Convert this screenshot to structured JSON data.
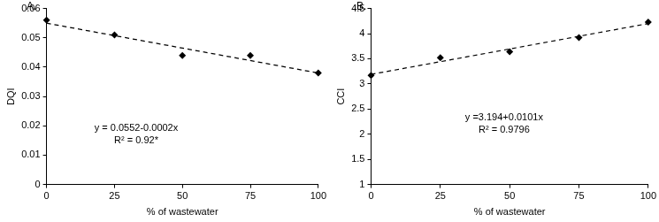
{
  "chart_data": [
    {
      "type": "scatter",
      "title": "A.",
      "x_label": "% of wastewater",
      "y_label": "DQI",
      "xlim": [
        0,
        100
      ],
      "xticks": [
        0,
        25,
        50,
        75,
        100
      ],
      "ylim": [
        0,
        0.06
      ],
      "yticks": [
        0,
        0.01,
        0.02,
        0.03,
        0.04,
        0.05,
        0.06
      ],
      "grid": false,
      "annotations": [
        "y = 0.0552-0.0002x",
        "R² = 0.92*"
      ],
      "series": [
        {
          "type": "scatter",
          "marker": "diamond",
          "color": "#000000",
          "x": [
            0,
            25,
            50,
            75,
            100
          ],
          "values": [
            0.056,
            0.051,
            0.044,
            0.044,
            0.038
          ]
        },
        {
          "type": "line",
          "line_style": "dashed",
          "color": "#000000",
          "x": [
            0,
            100
          ],
          "values": [
            0.055,
            0.038
          ]
        }
      ]
    },
    {
      "type": "scatter",
      "title": "B.",
      "x_label": "% of wastewater",
      "y_label": "CCI",
      "xlim": [
        0,
        100
      ],
      "xticks": [
        0,
        25,
        50,
        75,
        100
      ],
      "ylim": [
        1,
        4.5
      ],
      "yticks": [
        1,
        1.5,
        2,
        2.5,
        3,
        3.5,
        4,
        4.5
      ],
      "grid": false,
      "annotations": [
        "y =3.194+0.0101x",
        "R² = 0.9796"
      ],
      "series": [
        {
          "type": "scatter",
          "marker": "diamond",
          "color": "#000000",
          "x": [
            0,
            25,
            50,
            75,
            100
          ],
          "values": [
            3.17,
            3.52,
            3.64,
            3.92,
            4.23
          ]
        },
        {
          "type": "line",
          "line_style": "dashed",
          "color": "#000000",
          "x": [
            0,
            100
          ],
          "values": [
            3.19,
            4.2
          ]
        }
      ]
    }
  ]
}
